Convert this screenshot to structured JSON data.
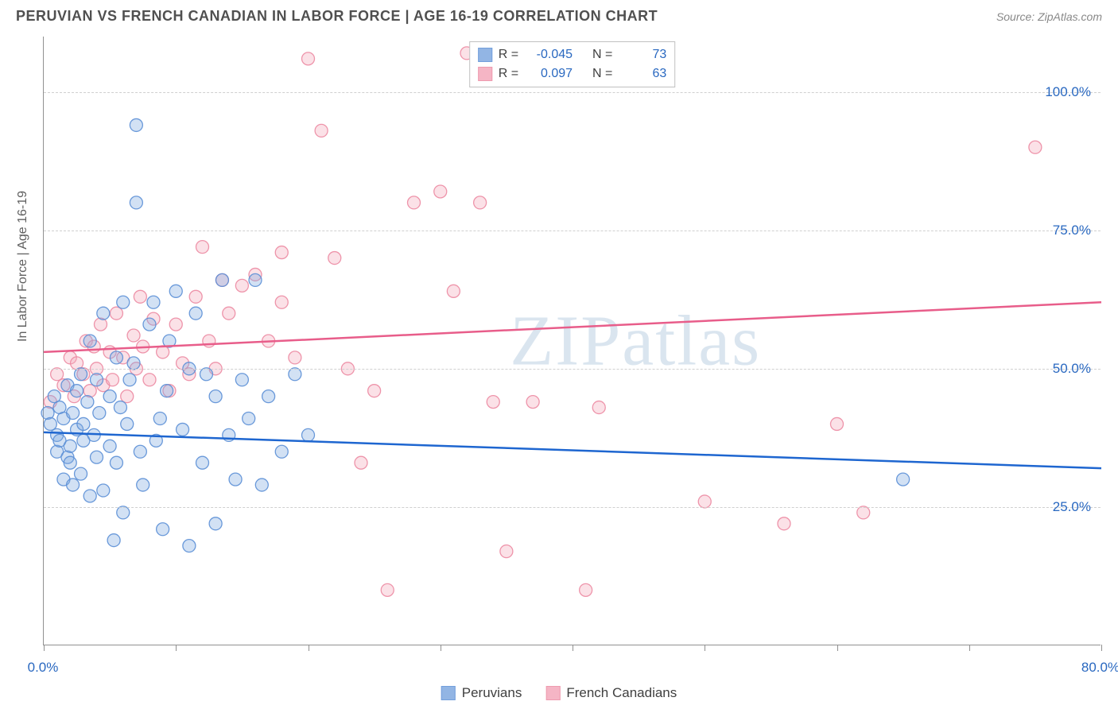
{
  "header": {
    "title": "PERUVIAN VS FRENCH CANADIAN IN LABOR FORCE | AGE 16-19 CORRELATION CHART",
    "source": "Source: ZipAtlas.com"
  },
  "chart": {
    "type": "scatter",
    "ylabel": "In Labor Force | Age 16-19",
    "watermark": "ZIPatlas",
    "xlim": [
      0,
      80
    ],
    "ylim": [
      0,
      110
    ],
    "xtick_positions": [
      0,
      10,
      20,
      30,
      40,
      50,
      60,
      70,
      80
    ],
    "xtick_labels": {
      "0": "0.0%",
      "80": "80.0%"
    },
    "ytick_positions": [
      25,
      50,
      75,
      100
    ],
    "ytick_labels": {
      "25": "25.0%",
      "50": "50.0%",
      "75": "75.0%",
      "100": "100.0%"
    },
    "background_color": "#ffffff",
    "grid_color": "#d0d0d0",
    "axis_color": "#909090",
    "tick_label_color": "#2968c0",
    "marker_radius": 8,
    "marker_fill_opacity": 0.35,
    "marker_stroke_opacity": 0.9,
    "line_width": 2.5
  },
  "series": {
    "peruvians": {
      "label": "Peruvians",
      "color": "#7fa9e0",
      "stroke": "#5b8fd6",
      "line_color": "#1e66d0",
      "R": "-0.045",
      "N": "73",
      "trend": {
        "x1": 0,
        "y1": 38.5,
        "x2": 80,
        "y2": 32
      },
      "points": [
        [
          0.3,
          42
        ],
        [
          0.5,
          40
        ],
        [
          0.8,
          45
        ],
        [
          1,
          38
        ],
        [
          1,
          35
        ],
        [
          1.2,
          37
        ],
        [
          1.2,
          43
        ],
        [
          1.5,
          30
        ],
        [
          1.5,
          41
        ],
        [
          1.8,
          34
        ],
        [
          1.8,
          47
        ],
        [
          2,
          36
        ],
        [
          2,
          33
        ],
        [
          2.2,
          42
        ],
        [
          2.2,
          29
        ],
        [
          2.5,
          39
        ],
        [
          2.5,
          46
        ],
        [
          2.8,
          31
        ],
        [
          2.8,
          49
        ],
        [
          3,
          40
        ],
        [
          3,
          37
        ],
        [
          3.3,
          44
        ],
        [
          3.5,
          27
        ],
        [
          3.5,
          55
        ],
        [
          3.8,
          38
        ],
        [
          4,
          34
        ],
        [
          4,
          48
        ],
        [
          4.2,
          42
        ],
        [
          4.5,
          28
        ],
        [
          4.5,
          60
        ],
        [
          5,
          45
        ],
        [
          5,
          36
        ],
        [
          5.3,
          19
        ],
        [
          5.5,
          52
        ],
        [
          5.5,
          33
        ],
        [
          6,
          62
        ],
        [
          6,
          24
        ],
        [
          6.3,
          40
        ],
        [
          6.5,
          48
        ],
        [
          7,
          80
        ],
        [
          7,
          94
        ],
        [
          7.3,
          35
        ],
        [
          7.5,
          29
        ],
        [
          8,
          58
        ],
        [
          8.3,
          62
        ],
        [
          8.5,
          37
        ],
        [
          9,
          21
        ],
        [
          9.3,
          46
        ],
        [
          9.5,
          55
        ],
        [
          10,
          64
        ],
        [
          10.5,
          39
        ],
        [
          11,
          18
        ],
        [
          11,
          50
        ],
        [
          11.5,
          60
        ],
        [
          12,
          33
        ],
        [
          12.3,
          49
        ],
        [
          13,
          22
        ],
        [
          13,
          45
        ],
        [
          13.5,
          66
        ],
        [
          14,
          38
        ],
        [
          14.5,
          30
        ],
        [
          15,
          48
        ],
        [
          15.5,
          41
        ],
        [
          16,
          66
        ],
        [
          16.5,
          29
        ],
        [
          17,
          45
        ],
        [
          18,
          35
        ],
        [
          19,
          49
        ],
        [
          20,
          38
        ],
        [
          65,
          30
        ],
        [
          5.8,
          43
        ],
        [
          6.8,
          51
        ],
        [
          8.8,
          41
        ]
      ]
    },
    "french_canadians": {
      "label": "French Canadians",
      "color": "#f4a9bb",
      "stroke": "#ec8aa2",
      "line_color": "#e85d8a",
      "R": "0.097",
      "N": "63",
      "trend": {
        "x1": 0,
        "y1": 53,
        "x2": 80,
        "y2": 62
      },
      "points": [
        [
          0.5,
          44
        ],
        [
          1,
          49
        ],
        [
          1.5,
          47
        ],
        [
          2,
          52
        ],
        [
          2.3,
          45
        ],
        [
          2.5,
          51
        ],
        [
          3,
          49
        ],
        [
          3.2,
          55
        ],
        [
          3.5,
          46
        ],
        [
          3.8,
          54
        ],
        [
          4,
          50
        ],
        [
          4.3,
          58
        ],
        [
          4.5,
          47
        ],
        [
          5,
          53
        ],
        [
          5.2,
          48
        ],
        [
          5.5,
          60
        ],
        [
          6,
          52
        ],
        [
          6.3,
          45
        ],
        [
          6.8,
          56
        ],
        [
          7,
          50
        ],
        [
          7.3,
          63
        ],
        [
          7.5,
          54
        ],
        [
          8,
          48
        ],
        [
          8.3,
          59
        ],
        [
          9,
          53
        ],
        [
          9.5,
          46
        ],
        [
          10,
          58
        ],
        [
          10.5,
          51
        ],
        [
          11,
          49
        ],
        [
          11.5,
          63
        ],
        [
          12,
          72
        ],
        [
          12.5,
          55
        ],
        [
          13,
          50
        ],
        [
          13.5,
          66
        ],
        [
          14,
          60
        ],
        [
          15,
          65
        ],
        [
          16,
          67
        ],
        [
          17,
          55
        ],
        [
          18,
          62
        ],
        [
          19,
          52
        ],
        [
          20,
          106
        ],
        [
          21,
          93
        ],
        [
          22,
          70
        ],
        [
          23,
          50
        ],
        [
          24,
          33
        ],
        [
          25,
          46
        ],
        [
          26,
          10
        ],
        [
          28,
          80
        ],
        [
          30,
          82
        ],
        [
          31,
          64
        ],
        [
          32,
          107
        ],
        [
          33,
          80
        ],
        [
          34,
          44
        ],
        [
          35,
          17
        ],
        [
          37,
          44
        ],
        [
          41,
          10
        ],
        [
          42,
          43
        ],
        [
          50,
          26
        ],
        [
          56,
          22
        ],
        [
          60,
          40
        ],
        [
          62,
          24
        ],
        [
          75,
          90
        ],
        [
          18,
          71
        ]
      ]
    }
  },
  "legend_top": {
    "R_label": "R =",
    "N_label": "N ="
  }
}
